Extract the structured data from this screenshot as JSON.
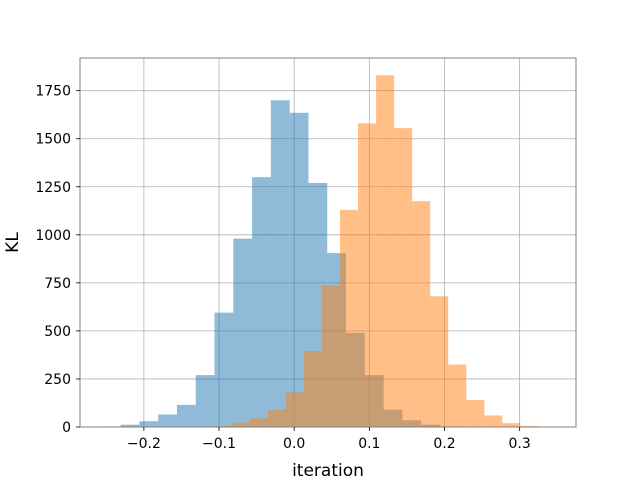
{
  "chart_data": {
    "type": "bar",
    "subtype": "overlapping-histogram",
    "title": "",
    "xlabel": "iteration",
    "ylabel": "KL",
    "xlim": [
      -0.285,
      0.375
    ],
    "ylim": [
      0,
      1920
    ],
    "grid": true,
    "legend": "none",
    "x_ticks": [
      -0.2,
      -0.1,
      0.0,
      0.1,
      0.2,
      0.3
    ],
    "x_tick_labels": [
      "−0.2",
      "−0.1",
      "0.0",
      "0.1",
      "0.2",
      "0.3"
    ],
    "y_ticks": [
      0,
      250,
      500,
      750,
      1000,
      1250,
      1500,
      1750
    ],
    "y_tick_labels": [
      "0",
      "250",
      "500",
      "750",
      "1000",
      "1250",
      "1500",
      "1750"
    ],
    "series": [
      {
        "color": "#1f77b4",
        "alpha": 0.5,
        "bin_edges": [
          -0.256,
          -0.231,
          -0.206,
          -0.181,
          -0.156,
          -0.131,
          -0.106,
          -0.081,
          -0.056,
          -0.031,
          -0.006,
          0.019,
          0.044,
          0.069,
          0.094,
          0.119,
          0.144,
          0.169,
          0.194,
          0.219
        ],
        "counts": [
          3,
          12,
          30,
          65,
          115,
          270,
          595,
          980,
          1300,
          1700,
          1635,
          1270,
          905,
          490,
          270,
          90,
          35,
          12,
          3
        ]
      },
      {
        "color": "#ff7f0e",
        "alpha": 0.5,
        "bin_edges": [
          -0.107,
          -0.083,
          -0.059,
          -0.035,
          -0.011,
          0.013,
          0.037,
          0.061,
          0.085,
          0.109,
          0.133,
          0.157,
          0.181,
          0.205,
          0.229,
          0.253,
          0.277,
          0.301,
          0.325,
          0.349
        ],
        "counts": [
          5,
          22,
          45,
          90,
          180,
          395,
          735,
          1130,
          1580,
          1830,
          1555,
          1175,
          680,
          325,
          140,
          60,
          20,
          5,
          2
        ]
      }
    ]
  }
}
